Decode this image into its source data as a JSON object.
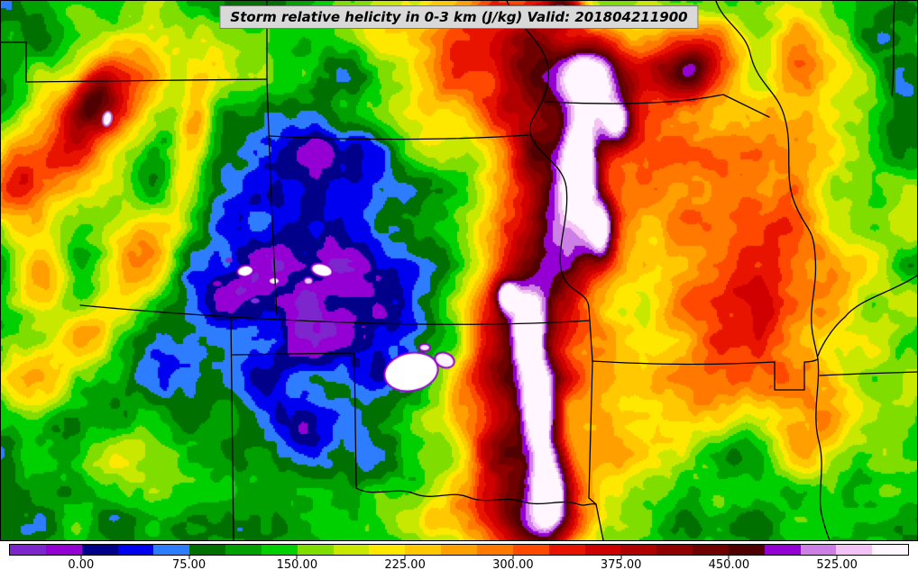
{
  "title": "Storm relative helicity in 0-3 km (J/kg) Valid: 201804211900",
  "colorbar": {
    "min": -50,
    "max": 575,
    "band_width": 25,
    "tick_values": [
      0,
      75,
      150,
      225,
      300,
      375,
      450,
      525
    ],
    "tick_labels": [
      "0.00",
      "75.00",
      "150.00",
      "225.00",
      "300.00",
      "375.00",
      "450.00",
      "525.00"
    ],
    "colors": [
      "#7D26CD",
      "#9400D3",
      "#00008B",
      "#0000F0",
      "#2E7CFF",
      "#007000",
      "#00A000",
      "#00D000",
      "#7FDD00",
      "#C8E800",
      "#FFE800",
      "#FFC800",
      "#FFA000",
      "#FF7800",
      "#FF4800",
      "#E81400",
      "#D00000",
      "#B00000",
      "#900000",
      "#700000",
      "#500000",
      "#9400D3",
      "#CE7FE6",
      "#F4C2F4",
      "#FFF6FF"
    ]
  },
  "chart_data": {
    "type": "heatmap",
    "title": "Storm relative helicity in 0-3 km (J/kg)",
    "units": "J/kg",
    "valid_time": "201804211900",
    "value_range": [
      -50,
      575
    ],
    "legend_position": "bottom",
    "field": {
      "base": 115,
      "noise_octaves": [
        [
          42,
          44
        ],
        [
          14,
          17
        ]
      ],
      "blob_format": [
        "x_frac",
        "y_frac",
        "sigma_x_frac",
        "sigma_y_frac",
        "amplitude_jkg",
        "rotation_deg"
      ],
      "blobs": [
        [
          0.105,
          0.21,
          0.04,
          0.11,
          255,
          18
        ],
        [
          0.1,
          0.175,
          0.018,
          0.045,
          120,
          15
        ],
        [
          0.02,
          0.33,
          0.028,
          0.06,
          175,
          0
        ],
        [
          0.045,
          0.52,
          0.025,
          0.05,
          150,
          0
        ],
        [
          0.155,
          0.47,
          0.028,
          0.075,
          165,
          10
        ],
        [
          0.04,
          0.7,
          0.03,
          0.05,
          135,
          0
        ],
        [
          0.1,
          0.62,
          0.022,
          0.04,
          115,
          0
        ],
        [
          0.21,
          0.24,
          0.014,
          0.085,
          150,
          5
        ],
        [
          0.12,
          0.85,
          0.03,
          0.045,
          60,
          0
        ],
        [
          0.07,
          0.78,
          0.03,
          0.04,
          -55,
          0
        ],
        [
          0.185,
          0.66,
          0.025,
          0.05,
          -45,
          0
        ],
        [
          0.25,
          0.13,
          0.03,
          0.045,
          55,
          0
        ],
        [
          0.33,
          0.43,
          0.085,
          0.14,
          -92,
          0
        ],
        [
          0.31,
          0.62,
          0.065,
          0.1,
          -70,
          0
        ],
        [
          0.415,
          0.6,
          0.05,
          0.08,
          -78,
          0
        ],
        [
          0.3,
          0.47,
          0.03,
          0.05,
          -35,
          0
        ],
        [
          0.36,
          0.29,
          0.04,
          0.06,
          -55,
          0
        ],
        [
          0.33,
          0.8,
          0.022,
          0.035,
          -65,
          0
        ],
        [
          0.4,
          0.85,
          0.028,
          0.04,
          -55,
          0
        ],
        [
          0.255,
          0.54,
          0.03,
          0.045,
          -40,
          0
        ],
        [
          0.56,
          0.06,
          0.055,
          0.085,
          215,
          0
        ],
        [
          0.595,
          0.21,
          0.048,
          0.095,
          225,
          0
        ],
        [
          0.612,
          0.38,
          0.045,
          0.095,
          230,
          0
        ],
        [
          0.585,
          0.52,
          0.048,
          0.09,
          220,
          0
        ],
        [
          0.562,
          0.68,
          0.045,
          0.095,
          225,
          0
        ],
        [
          0.565,
          0.85,
          0.048,
          0.095,
          230,
          0
        ],
        [
          0.578,
          0.965,
          0.05,
          0.055,
          220,
          0
        ],
        [
          0.633,
          0.3,
          0.013,
          0.065,
          310,
          0
        ],
        [
          0.655,
          0.425,
          0.01,
          0.04,
          270,
          0
        ],
        [
          0.64,
          0.14,
          0.022,
          0.04,
          290,
          0
        ],
        [
          0.672,
          0.225,
          0.012,
          0.03,
          250,
          0
        ],
        [
          0.615,
          0.015,
          0.015,
          0.02,
          260,
          0
        ],
        [
          0.576,
          0.62,
          0.01,
          0.045,
          300,
          0
        ],
        [
          0.588,
          0.755,
          0.012,
          0.055,
          305,
          0
        ],
        [
          0.6,
          0.905,
          0.013,
          0.055,
          295,
          0
        ],
        [
          0.553,
          0.548,
          0.008,
          0.018,
          280,
          0
        ],
        [
          0.468,
          0.14,
          0.04,
          0.11,
          115,
          0
        ],
        [
          0.7,
          0.175,
          0.048,
          0.08,
          135,
          0
        ],
        [
          0.752,
          0.095,
          0.038,
          0.05,
          165,
          0
        ],
        [
          0.8,
          0.45,
          0.12,
          0.25,
          148,
          0
        ],
        [
          0.8,
          0.33,
          0.04,
          0.07,
          80,
          0
        ],
        [
          0.845,
          0.555,
          0.048,
          0.09,
          88,
          0
        ],
        [
          0.76,
          0.72,
          0.048,
          0.08,
          82,
          0
        ],
        [
          0.885,
          0.25,
          0.03,
          0.05,
          70,
          0
        ],
        [
          0.815,
          0.86,
          0.035,
          0.07,
          -70,
          0
        ],
        [
          0.97,
          0.18,
          0.03,
          0.08,
          -58,
          0
        ],
        [
          0.68,
          0.85,
          0.04,
          0.08,
          85,
          0
        ],
        [
          0.38,
          0.045,
          0.05,
          0.035,
          45,
          0
        ],
        [
          0.47,
          0.965,
          0.03,
          0.03,
          95,
          0
        ],
        [
          0.95,
          0.06,
          0.04,
          0.05,
          -55,
          0
        ],
        [
          0.935,
          0.88,
          0.02,
          0.05,
          -50,
          0
        ],
        [
          0.755,
          0.135,
          0.015,
          0.03,
          90,
          0
        ],
        [
          0.9,
          0.1,
          0.045,
          0.06,
          120,
          0
        ],
        [
          0.88,
          0.78,
          0.04,
          0.08,
          110,
          0
        ]
      ]
    },
    "overlay_spot_format": [
      "cx_px",
      "cy_px",
      "rx_px",
      "ry_px",
      "rotation_deg",
      "fill",
      "ring"
    ],
    "overlay_spots": [
      [
        455,
        412,
        30,
        21,
        -12,
        "#FFFFFF",
        "#9400D3"
      ],
      [
        492,
        399,
        11,
        8,
        20,
        "#FDF2FF",
        "#9400D3"
      ],
      [
        470,
        385,
        6,
        4,
        0,
        "#F6E2FA",
        "#9400D3"
      ],
      [
        271,
        300,
        9,
        6,
        -10,
        "#FFFFFF",
        "#9400D3"
      ],
      [
        303,
        311,
        6,
        4,
        0,
        "#F8EEFC",
        "#9400D3"
      ],
      [
        356,
        299,
        12,
        7,
        15,
        "#FFFFFF",
        "#9400D3"
      ],
      [
        341,
        311,
        5,
        4,
        0,
        "#E8CCF2",
        "#9400D3"
      ],
      [
        118,
        131,
        5,
        8,
        12,
        "#FFF4FF",
        "#B06CD8"
      ],
      [
        240,
        314,
        5,
        3,
        0,
        "#9400D3",
        null
      ],
      [
        253,
        288,
        4,
        3,
        0,
        "#7D26CD",
        null
      ],
      [
        390,
        293,
        6,
        3,
        10,
        "#9400D3",
        null
      ],
      [
        282,
        333,
        5,
        3,
        0,
        "#8A2BE2",
        null
      ]
    ]
  }
}
